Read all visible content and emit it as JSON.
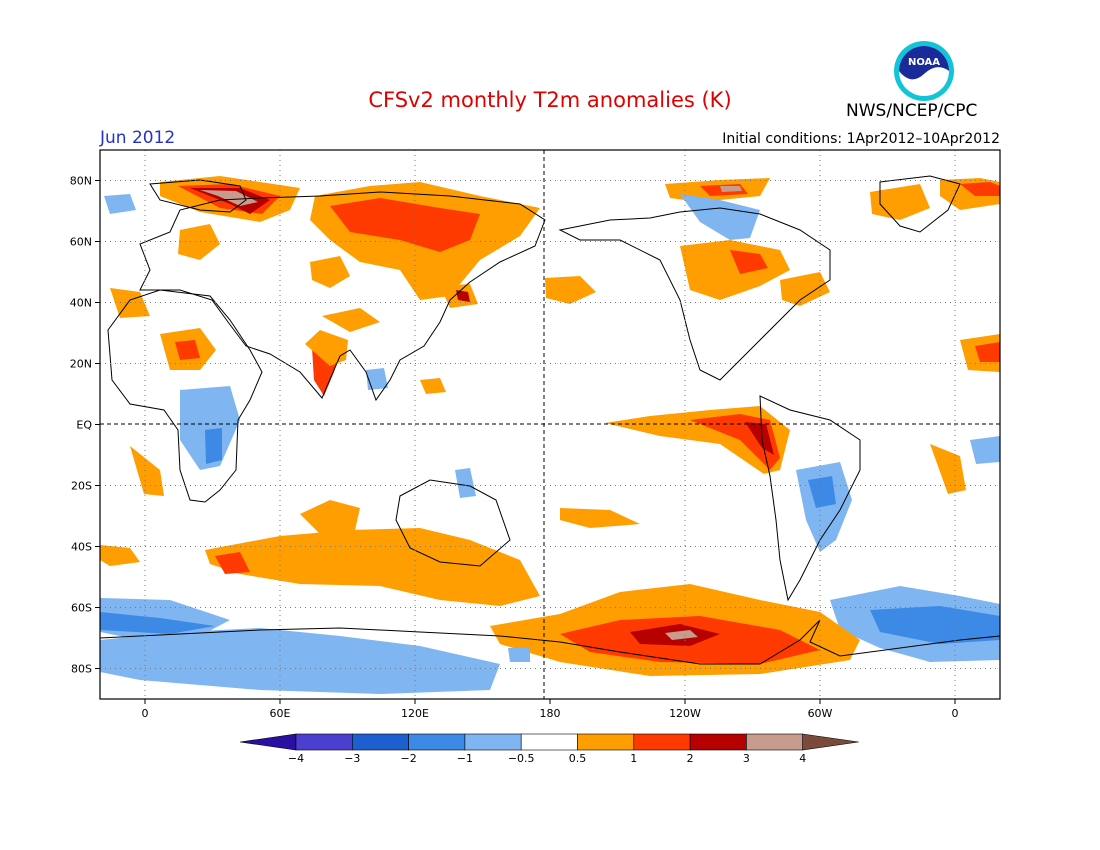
{
  "title": "CFSv2 monthly T2m anomalies (K)",
  "month": "Jun 2012",
  "initial_conditions": "Initial conditions: 1Apr2012–10Apr2012",
  "organization": "NWS/NCEP/CPC",
  "logo_text": "NOAA",
  "map": {
    "projection": "equirectangular",
    "lon_range": [
      -20,
      380
    ],
    "lat_range": [
      -90,
      90
    ],
    "lat_ticks": [
      {
        "lat": 80,
        "label": "80N"
      },
      {
        "lat": 60,
        "label": "60N"
      },
      {
        "lat": 40,
        "label": "40N"
      },
      {
        "lat": 20,
        "label": "20N"
      },
      {
        "lat": 0,
        "label": "EQ"
      },
      {
        "lat": -20,
        "label": "20S"
      },
      {
        "lat": -40,
        "label": "40S"
      },
      {
        "lat": -60,
        "label": "60S"
      },
      {
        "lat": -80,
        "label": "80S"
      }
    ],
    "lon_ticks": [
      {
        "lon": 0,
        "label": "0"
      },
      {
        "lon": 60,
        "label": "60E"
      },
      {
        "lon": 120,
        "label": "120E"
      },
      {
        "lon": 180,
        "label": "180"
      },
      {
        "lon": 240,
        "label": "120W"
      },
      {
        "lon": 300,
        "label": "60W"
      },
      {
        "lon": 360,
        "label": "0"
      }
    ],
    "grid": true
  },
  "colorbar": {
    "labels": [
      "−4",
      "−3",
      "−2",
      "−1",
      "−0.5",
      "0.5",
      "1",
      "2",
      "3",
      "4"
    ],
    "colors": [
      "#2a0fa0",
      "#4a3fcf",
      "#1e5fd0",
      "#3c8ae6",
      "#7fb6f2",
      "#ffffff",
      "#ff9e00",
      "#ff3a00",
      "#b70000",
      "#c79c8c",
      "#7a4a3a"
    ]
  }
}
